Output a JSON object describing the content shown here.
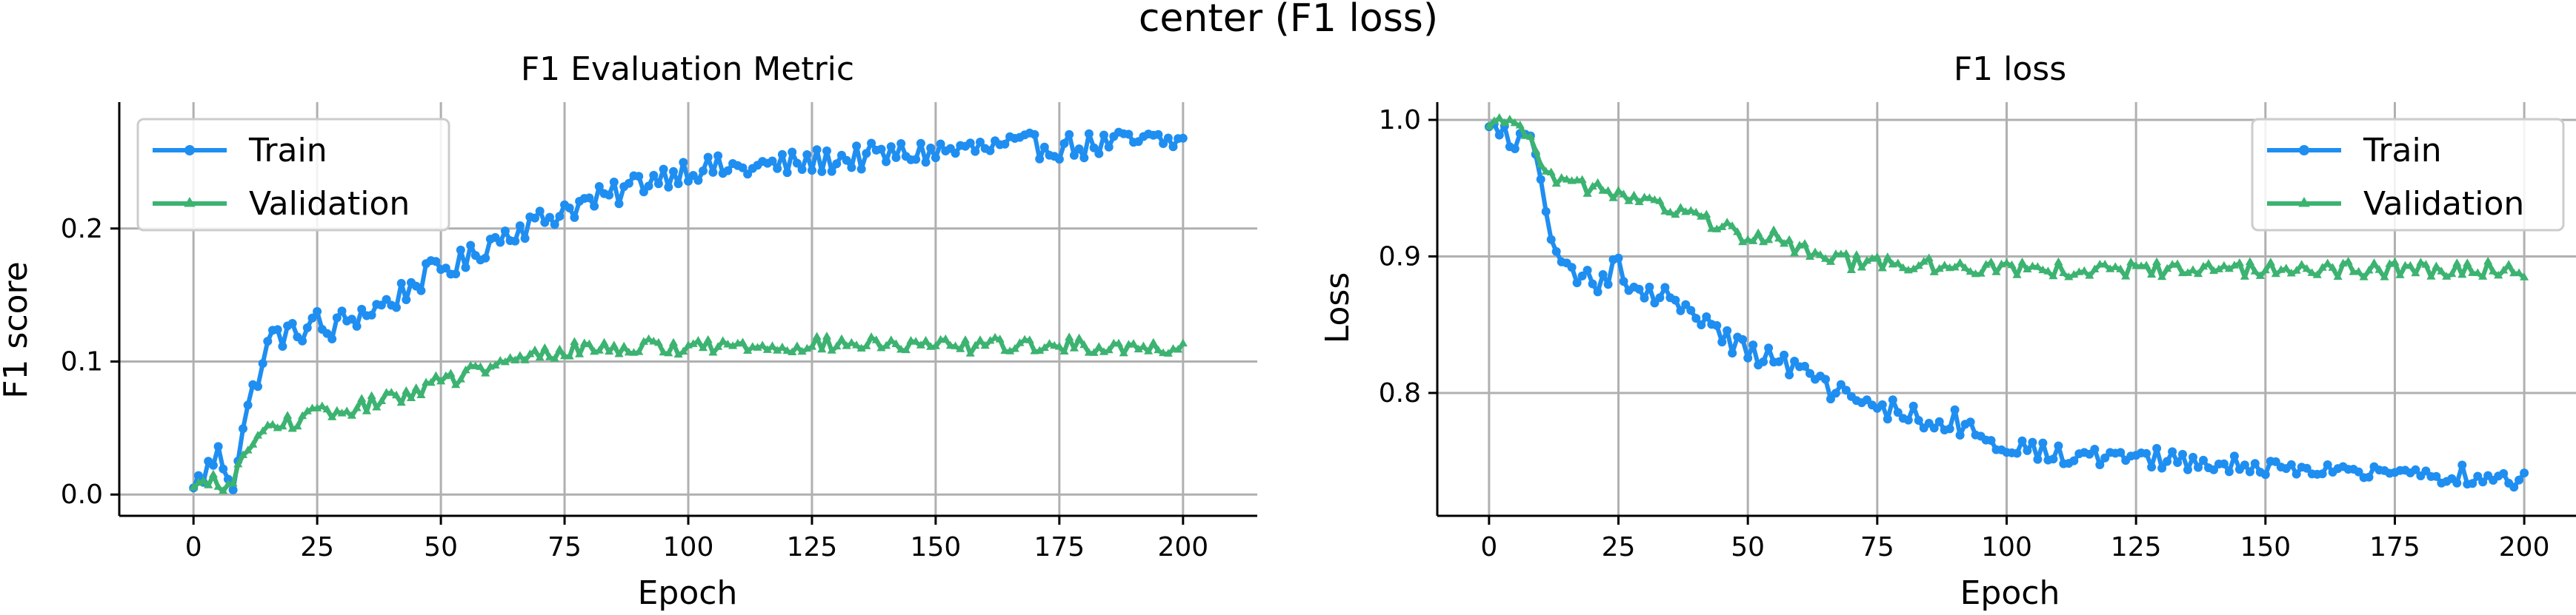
{
  "figure": {
    "title": "center (F1 loss)"
  },
  "chart_data": [
    {
      "type": "line",
      "title": "F1 Evaluation Metric",
      "xlabel": "Epoch",
      "ylabel": "F1 score",
      "xlim": [
        -15,
        215
      ],
      "ylim": [
        -0.016,
        0.295
      ],
      "xticks": [
        0,
        25,
        50,
        75,
        100,
        125,
        150,
        175,
        200
      ],
      "xtick_labels": [
        "0",
        "25",
        "50",
        "75",
        "100",
        "125",
        "150",
        "175",
        "200"
      ],
      "yticks": [
        0.0,
        0.1,
        0.2
      ],
      "ytick_labels": [
        "0.0",
        "0.1",
        "0.2"
      ],
      "grid": true,
      "legend": "top-left",
      "series": [
        {
          "name": "Train",
          "color": "#1f8ef1",
          "marker": "circle",
          "keypoints": [
            [
              0,
              0.005
            ],
            [
              5,
              0.03
            ],
            [
              8,
              0.01
            ],
            [
              10,
              0.05
            ],
            [
              13,
              0.09
            ],
            [
              16,
              0.12
            ],
            [
              20,
              0.12
            ],
            [
              25,
              0.13
            ],
            [
              27,
              0.12
            ],
            [
              30,
              0.13
            ],
            [
              40,
              0.145
            ],
            [
              45,
              0.16
            ],
            [
              50,
              0.17
            ],
            [
              55,
              0.175
            ],
            [
              60,
              0.19
            ],
            [
              65,
              0.2
            ],
            [
              70,
              0.205
            ],
            [
              75,
              0.215
            ],
            [
              80,
              0.22
            ],
            [
              85,
              0.225
            ],
            [
              90,
              0.235
            ],
            [
              95,
              0.24
            ],
            [
              100,
              0.245
            ],
            [
              110,
              0.245
            ],
            [
              120,
              0.248
            ],
            [
              130,
              0.252
            ],
            [
              140,
              0.255
            ],
            [
              150,
              0.258
            ],
            [
              160,
              0.26
            ],
            [
              170,
              0.262
            ],
            [
              180,
              0.262
            ],
            [
              190,
              0.265
            ],
            [
              200,
              0.265
            ]
          ],
          "noise": 0.01
        },
        {
          "name": "Validation",
          "color": "#3cb371",
          "marker": "tri",
          "keypoints": [
            [
              0,
              0.005
            ],
            [
              5,
              0.01
            ],
            [
              8,
              0.005
            ],
            [
              10,
              0.03
            ],
            [
              15,
              0.05
            ],
            [
              20,
              0.055
            ],
            [
              25,
              0.06
            ],
            [
              30,
              0.062
            ],
            [
              40,
              0.072
            ],
            [
              50,
              0.085
            ],
            [
              60,
              0.095
            ],
            [
              70,
              0.105
            ],
            [
              75,
              0.108
            ],
            [
              80,
              0.11
            ],
            [
              100,
              0.111
            ],
            [
              120,
              0.112
            ],
            [
              130,
              0.113
            ],
            [
              150,
              0.111
            ],
            [
              160,
              0.112
            ],
            [
              175,
              0.112
            ],
            [
              200,
              0.11
            ]
          ],
          "noise": 0.006
        }
      ]
    },
    {
      "type": "line",
      "title": "F1 loss",
      "xlabel": "Epoch",
      "ylabel": "Loss",
      "xlim": [
        -10,
        210
      ],
      "ylim": [
        0.71,
        1.013
      ],
      "xticks": [
        0,
        25,
        50,
        75,
        100,
        125,
        150,
        175,
        200
      ],
      "xtick_labels": [
        "0",
        "25",
        "50",
        "75",
        "100",
        "125",
        "150",
        "175",
        "200"
      ],
      "yticks": [
        0.8,
        0.9,
        1.0
      ],
      "ytick_labels": [
        "0.8",
        "0.9",
        "1.0"
      ],
      "grid": true,
      "legend": "top-right",
      "series": [
        {
          "name": "Train",
          "color": "#1f8ef1",
          "marker": "circle",
          "keypoints": [
            [
              0,
              0.995
            ],
            [
              5,
              0.985
            ],
            [
              8,
              0.985
            ],
            [
              10,
              0.96
            ],
            [
              12,
              0.905
            ],
            [
              15,
              0.89
            ],
            [
              20,
              0.88
            ],
            [
              22,
              0.88
            ],
            [
              25,
              0.895
            ],
            [
              28,
              0.875
            ],
            [
              35,
              0.87
            ],
            [
              40,
              0.86
            ],
            [
              45,
              0.84
            ],
            [
              50,
              0.83
            ],
            [
              55,
              0.825
            ],
            [
              60,
              0.815
            ],
            [
              65,
              0.805
            ],
            [
              70,
              0.795
            ],
            [
              75,
              0.79
            ],
            [
              80,
              0.785
            ],
            [
              85,
              0.78
            ],
            [
              90,
              0.78
            ],
            [
              95,
              0.765
            ],
            [
              100,
              0.76
            ],
            [
              110,
              0.755
            ],
            [
              120,
              0.755
            ],
            [
              130,
              0.752
            ],
            [
              140,
              0.748
            ],
            [
              150,
              0.745
            ],
            [
              160,
              0.745
            ],
            [
              170,
              0.742
            ],
            [
              180,
              0.74
            ],
            [
              190,
              0.74
            ],
            [
              200,
              0.735
            ]
          ],
          "noise": 0.008
        },
        {
          "name": "Validation",
          "color": "#3cb371",
          "marker": "tri",
          "keypoints": [
            [
              0,
              0.995
            ],
            [
              5,
              0.998
            ],
            [
              8,
              0.99
            ],
            [
              10,
              0.97
            ],
            [
              13,
              0.955
            ],
            [
              20,
              0.95
            ],
            [
              25,
              0.945
            ],
            [
              30,
              0.94
            ],
            [
              35,
              0.935
            ],
            [
              40,
              0.93
            ],
            [
              45,
              0.92
            ],
            [
              50,
              0.915
            ],
            [
              55,
              0.915
            ],
            [
              60,
              0.905
            ],
            [
              65,
              0.9
            ],
            [
              70,
              0.895
            ],
            [
              80,
              0.893
            ],
            [
              90,
              0.892
            ],
            [
              100,
              0.891
            ],
            [
              120,
              0.89
            ],
            [
              140,
              0.89
            ],
            [
              160,
              0.89
            ],
            [
              180,
              0.89
            ],
            [
              200,
              0.89
            ]
          ],
          "noise": 0.006
        }
      ]
    }
  ]
}
